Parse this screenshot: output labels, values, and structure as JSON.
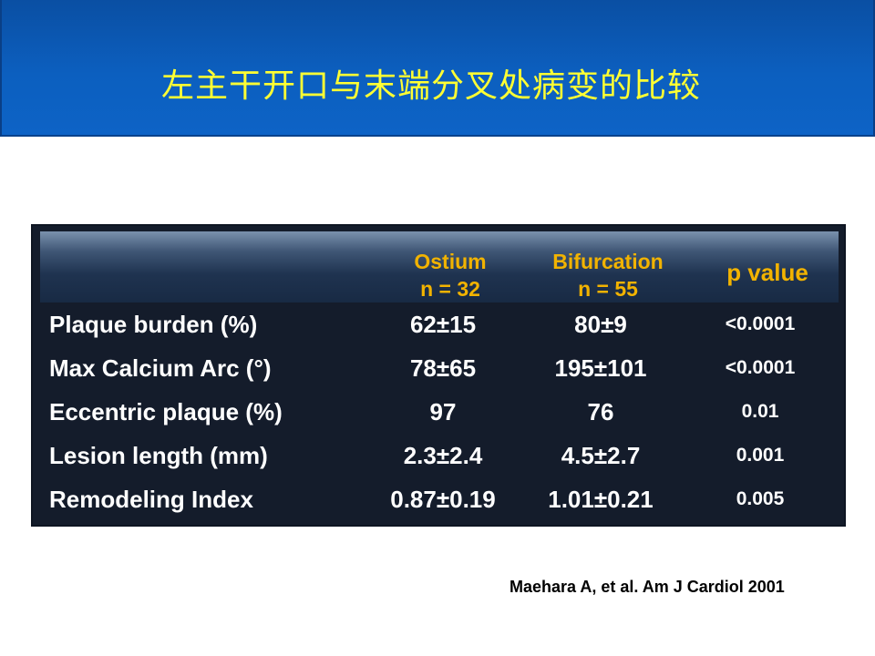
{
  "slide": {
    "title": "左主干开口与末端分叉处病变的比较",
    "citation": "Maehara A, et al. Am J Cardiol 2001"
  },
  "table": {
    "headers": {
      "ostium": {
        "name": "Ostium",
        "n": "n = 32"
      },
      "bifurcation": {
        "name": "Bifurcation",
        "n": "n = 55"
      },
      "p_value": "p value"
    },
    "rows": [
      {
        "label": "Plaque burden (%)",
        "ostium": "62±15",
        "bifurcation": "80±9",
        "p": "<0.0001"
      },
      {
        "label": "Max Calcium Arc (°)",
        "ostium": "78±65",
        "bifurcation": "195±101",
        "p": "<0.0001"
      },
      {
        "label": "Eccentric plaque (%)",
        "ostium": "97",
        "bifurcation": "76",
        "p": "0.01"
      },
      {
        "label": "Lesion length (mm)",
        "ostium": "2.3±2.4",
        "bifurcation": "4.5±2.7",
        "p": "0.001"
      },
      {
        "label": "Remodeling Index",
        "ostium": "0.87±0.19",
        "bifurcation": "1.01±0.21",
        "p": "0.005"
      }
    ]
  },
  "colors": {
    "header_band": "#0c5fbf",
    "title_text": "#ffff33",
    "table_background": "#141c2b",
    "column_header_text": "#f2b300",
    "cell_text": "#ffffff"
  }
}
